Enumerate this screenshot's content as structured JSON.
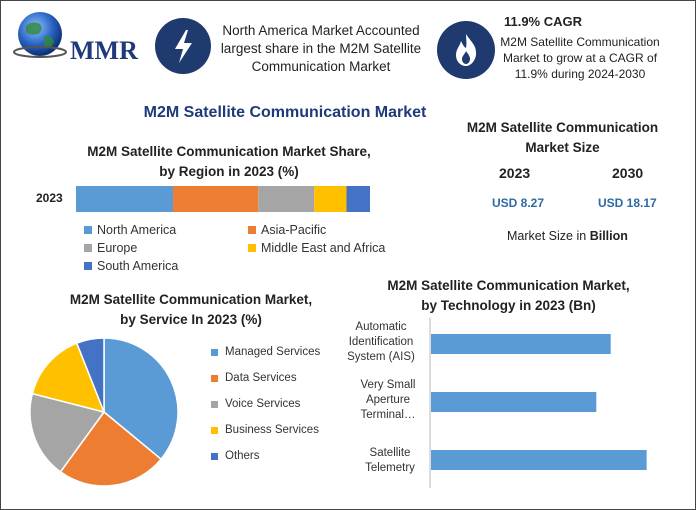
{
  "logo": {
    "text": "MMR"
  },
  "highlight": {
    "left_text": "North America Market Accounted largest share in the M2M Satellite Communication Market",
    "cagr_title": "11.9% CAGR",
    "cagr_text": "M2M Satellite Communication Market to grow at a CAGR of 11.9% during 2024-2030"
  },
  "main_title": "M2M Satellite Communication Market",
  "market_size": {
    "title": "M2M Satellite Communication Market Size",
    "year_a": "2023",
    "year_b": "2030",
    "value_a": "USD 8.27",
    "value_b": "USD 18.17",
    "unit_prefix": "Market Size in",
    "unit_bold": "Billion"
  },
  "colors": {
    "blue": "#5b9bd5",
    "orange": "#ed7d31",
    "gray": "#a5a5a5",
    "yellow": "#ffc000",
    "darkblue": "#4472c4",
    "icon_bg": "#1f3a6e"
  },
  "icons": {
    "left": "lightning-bolt-icon",
    "right": "flame-icon",
    "logo": "globe-icon"
  },
  "chart_data": [
    {
      "type": "bar",
      "orientation": "horizontal-stacked",
      "title": "M2M Satellite Communication Market Share, by Region in 2023 (%)",
      "categories": [
        "2023"
      ],
      "series": [
        {
          "name": "North America",
          "values": [
            33
          ]
        },
        {
          "name": "Asia-Pacific",
          "values": [
            29
          ]
        },
        {
          "name": "Europe",
          "values": [
            19
          ]
        },
        {
          "name": "Middle East and Africa",
          "values": [
            11
          ]
        },
        {
          "name": "South America",
          "values": [
            8
          ]
        }
      ],
      "legend": "bottom"
    },
    {
      "type": "pie",
      "title": "M2M Satellite Communication Market, by Service In 2023 (%)",
      "labels": [
        "Managed Services",
        "Data Services",
        "Voice Services",
        "Business Services",
        "Others"
      ],
      "values": [
        36,
        24,
        19,
        15,
        6
      ],
      "legend": "right"
    },
    {
      "type": "bar",
      "orientation": "horizontal",
      "title": "M2M Satellite Communication Market, by Technology in 2023 (Bn)",
      "categories": [
        "Automatic Identification System (AIS)",
        "Very Small Aperture Terminal…",
        "Satellite Telemetry"
      ],
      "values": [
        2.5,
        2.3,
        3.0
      ],
      "xlim": [
        0,
        3.2
      ],
      "grid": false
    }
  ]
}
